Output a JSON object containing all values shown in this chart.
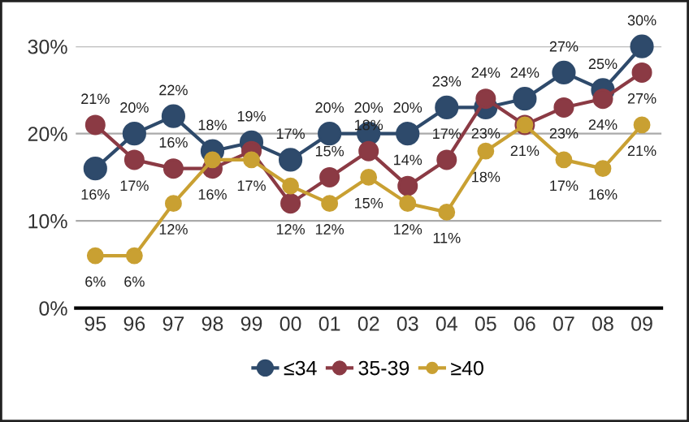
{
  "chart_data": {
    "type": "line",
    "categories": [
      "95",
      "96",
      "97",
      "98",
      "99",
      "00",
      "01",
      "02",
      "03",
      "04",
      "05",
      "06",
      "07",
      "08",
      "09"
    ],
    "series": [
      {
        "name": "≤34",
        "color": "#2e4a6b",
        "values": [
          16,
          20,
          22,
          18,
          19,
          17,
          20,
          20,
          20,
          23,
          23,
          24,
          27,
          25,
          30
        ],
        "value_labels": [
          "16%",
          "20%",
          "22%",
          "18%",
          "19%",
          "17%",
          "20%",
          "20%",
          "20%",
          "23%",
          "23%",
          "24%",
          "27%",
          "25%",
          "30%"
        ]
      },
      {
        "name": "35-39",
        "color": "#8b3a44",
        "values": [
          21,
          17,
          16,
          16,
          18,
          12,
          15,
          18,
          14,
          17,
          24,
          21,
          23,
          24,
          27
        ],
        "value_labels": [
          "21%",
          "17%",
          "16%",
          "16%",
          null,
          "12%",
          "15%",
          "18%",
          "14%",
          "17%",
          "24%",
          null,
          "23%",
          "24%",
          "27%"
        ]
      },
      {
        "name": "≥40",
        "color": "#c9a032",
        "values": [
          6,
          6,
          12,
          17,
          17,
          14,
          12,
          15,
          12,
          11,
          18,
          21,
          17,
          16,
          21
        ],
        "value_labels": [
          "6%",
          "6%",
          "12%",
          null,
          "17%",
          null,
          "12%",
          "15%",
          "12%",
          "11%",
          "18%",
          "21%",
          "17%",
          "16%",
          "21%"
        ]
      }
    ],
    "ylim": [
      0,
      30
    ],
    "yticks": [
      {
        "value": 0,
        "label": "0%"
      },
      {
        "value": 10,
        "label": "10%"
      },
      {
        "value": 20,
        "label": "20%"
      },
      {
        "value": 30,
        "label": "30%"
      }
    ],
    "grid": "y",
    "legend": "bottom",
    "marker": "circle",
    "line_style": "solid"
  }
}
